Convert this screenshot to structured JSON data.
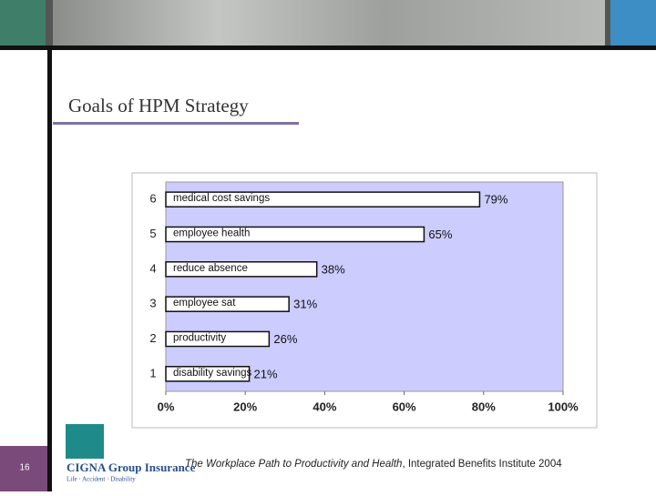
{
  "slide": {
    "title": "Goals of HPM Strategy",
    "page_number": "16"
  },
  "logo": {
    "name": "CIGNA Group Insurance",
    "tagline": "Life · Accident · Disability"
  },
  "footer": {
    "source_title": "The Workplace Path to Productivity and Health",
    "source_rest": ", Integrated Benefits Institute 2004"
  },
  "chart_data": {
    "type": "hbar",
    "categories": [
      "1",
      "2",
      "3",
      "4",
      "5",
      "6"
    ],
    "bar_labels": [
      "disability savings",
      "productivity",
      "employee sat",
      "reduce absence",
      "employee health",
      "medical cost savings"
    ],
    "values": [
      21,
      26,
      31,
      38,
      65,
      79
    ],
    "value_labels": [
      "21%",
      "26%",
      "31%",
      "38%",
      "65%",
      "79%"
    ],
    "color": "#ffffff",
    "plot_background": "#ccccff",
    "xlim": [
      0,
      100
    ],
    "xticks": [
      {
        "value": 0,
        "label": "0%"
      },
      {
        "value": 20,
        "label": "20%"
      },
      {
        "value": 40,
        "label": "40%"
      },
      {
        "value": 60,
        "label": "60%"
      },
      {
        "value": 80,
        "label": "80%"
      },
      {
        "value": 100,
        "label": "100%"
      }
    ],
    "grid": false
  }
}
